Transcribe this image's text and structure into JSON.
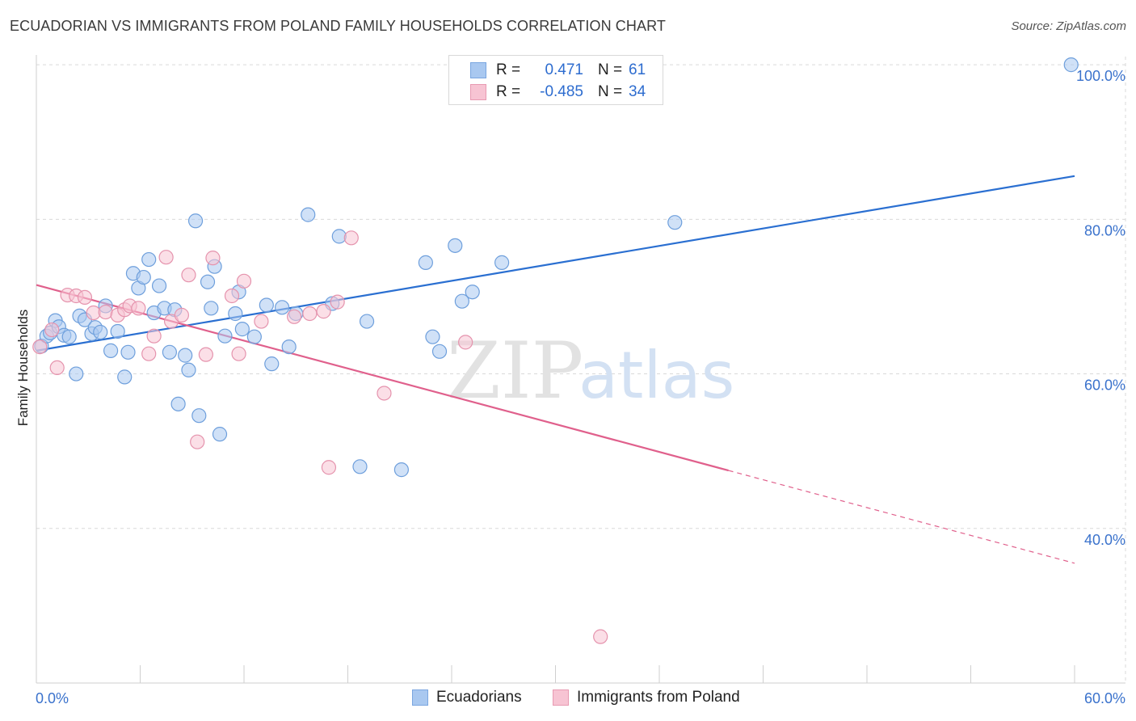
{
  "header": {
    "title": "ECUADORIAN VS IMMIGRANTS FROM POLAND FAMILY HOUSEHOLDS CORRELATION CHART",
    "source": "Source: ZipAtlas.com"
  },
  "legend": {
    "r_label": "R =",
    "n_label": "N =",
    "rows": [
      {
        "r": "0.471",
        "n": "61",
        "color": "#a9c8f0",
        "border": "#7aa6e0"
      },
      {
        "r": "-0.485",
        "n": "34",
        "color": "#f7c4d3",
        "border": "#e89ab2"
      }
    ]
  },
  "bottom_legend": [
    "Ecuadorians",
    "Immigrants from Poland"
  ],
  "watermark": {
    "zip": "ZIP",
    "atlas": "atlas"
  },
  "colors": {
    "blue_fill": "#a9c8f0",
    "blue_stroke": "#6e9fdc",
    "blue_line": "#2a6fd1",
    "pink_fill": "#f7c4d3",
    "pink_stroke": "#e593ad",
    "pink_line": "#e0608c",
    "tick_text": "#3a72cc",
    "grid": "#d9d9d9"
  },
  "chart_data": {
    "type": "scatter",
    "title": "ECUADORIAN VS IMMIGRANTS FROM POLAND FAMILY HOUSEHOLDS CORRELATION CHART",
    "xlabel": "",
    "ylabel": "Family Households",
    "xlim": [
      0,
      60
    ],
    "ylim": [
      20,
      102
    ],
    "x_tick_labels": [
      "0.0%",
      "60.0%"
    ],
    "y_ticks": [
      40,
      60,
      80,
      100
    ],
    "y_tick_labels": [
      "40.0%",
      "60.0%",
      "80.0%",
      "100.0%"
    ],
    "grid": true,
    "legend_position": "top-center",
    "series": [
      {
        "name": "Ecuadorians",
        "r": 0.471,
        "n": 61,
        "trend": {
          "x": [
            0,
            60
          ],
          "y": [
            63.0,
            85.6
          ],
          "dashed_from": null
        },
        "points": [
          [
            0.3,
            63.6
          ],
          [
            0.6,
            64.9
          ],
          [
            0.8,
            65.3
          ],
          [
            1.1,
            66.9
          ],
          [
            1.3,
            66.1
          ],
          [
            1.6,
            65.0
          ],
          [
            1.9,
            64.8
          ],
          [
            2.3,
            60.0
          ],
          [
            2.5,
            67.5
          ],
          [
            2.8,
            67.0
          ],
          [
            3.2,
            65.2
          ],
          [
            3.4,
            66.0
          ],
          [
            3.7,
            65.4
          ],
          [
            4.0,
            68.8
          ],
          [
            4.3,
            63.0
          ],
          [
            4.7,
            65.5
          ],
          [
            5.1,
            59.6
          ],
          [
            5.3,
            62.8
          ],
          [
            5.6,
            73.0
          ],
          [
            5.9,
            71.1
          ],
          [
            6.2,
            72.5
          ],
          [
            6.5,
            74.8
          ],
          [
            6.8,
            67.9
          ],
          [
            7.1,
            71.4
          ],
          [
            7.4,
            68.5
          ],
          [
            7.7,
            62.8
          ],
          [
            8.0,
            68.3
          ],
          [
            8.2,
            56.1
          ],
          [
            8.6,
            62.4
          ],
          [
            8.8,
            60.5
          ],
          [
            9.2,
            79.8
          ],
          [
            9.4,
            54.6
          ],
          [
            9.9,
            71.9
          ],
          [
            10.1,
            68.5
          ],
          [
            10.3,
            73.9
          ],
          [
            10.6,
            52.2
          ],
          [
            10.9,
            64.9
          ],
          [
            11.5,
            67.8
          ],
          [
            11.7,
            70.6
          ],
          [
            11.9,
            65.8
          ],
          [
            12.6,
            64.8
          ],
          [
            13.3,
            68.9
          ],
          [
            13.6,
            61.3
          ],
          [
            14.2,
            68.6
          ],
          [
            14.6,
            63.5
          ],
          [
            15.0,
            67.8
          ],
          [
            15.7,
            80.6
          ],
          [
            17.1,
            69.1
          ],
          [
            17.5,
            77.8
          ],
          [
            18.7,
            48.0
          ],
          [
            19.1,
            66.8
          ],
          [
            21.1,
            47.6
          ],
          [
            22.5,
            74.4
          ],
          [
            22.9,
            64.8
          ],
          [
            23.3,
            62.9
          ],
          [
            24.2,
            76.6
          ],
          [
            24.6,
            69.4
          ],
          [
            25.2,
            70.6
          ],
          [
            26.9,
            74.4
          ],
          [
            36.9,
            79.6
          ],
          [
            59.8,
            100.0
          ]
        ]
      },
      {
        "name": "Immigrants from Poland",
        "r": -0.485,
        "n": 34,
        "trend": {
          "x": [
            0,
            60
          ],
          "y": [
            71.5,
            35.5
          ],
          "dashed_from": 40
        },
        "points": [
          [
            0.2,
            63.5
          ],
          [
            0.9,
            65.7
          ],
          [
            1.2,
            60.8
          ],
          [
            1.8,
            70.2
          ],
          [
            2.3,
            70.1
          ],
          [
            2.8,
            69.9
          ],
          [
            3.3,
            67.9
          ],
          [
            4.0,
            68.0
          ],
          [
            4.7,
            67.6
          ],
          [
            5.1,
            68.3
          ],
          [
            5.4,
            68.8
          ],
          [
            5.9,
            68.5
          ],
          [
            6.5,
            62.6
          ],
          [
            6.8,
            64.9
          ],
          [
            7.5,
            75.1
          ],
          [
            7.8,
            66.8
          ],
          [
            8.4,
            67.6
          ],
          [
            8.8,
            72.8
          ],
          [
            9.3,
            51.2
          ],
          [
            9.8,
            62.5
          ],
          [
            10.2,
            75.0
          ],
          [
            11.3,
            70.1
          ],
          [
            11.7,
            62.6
          ],
          [
            12.0,
            72.0
          ],
          [
            13.0,
            66.8
          ],
          [
            14.9,
            67.4
          ],
          [
            15.8,
            67.8
          ],
          [
            16.6,
            68.1
          ],
          [
            16.9,
            47.9
          ],
          [
            17.4,
            69.3
          ],
          [
            18.2,
            77.6
          ],
          [
            20.1,
            57.5
          ],
          [
            24.8,
            64.1
          ],
          [
            32.6,
            26.0
          ]
        ]
      }
    ]
  }
}
